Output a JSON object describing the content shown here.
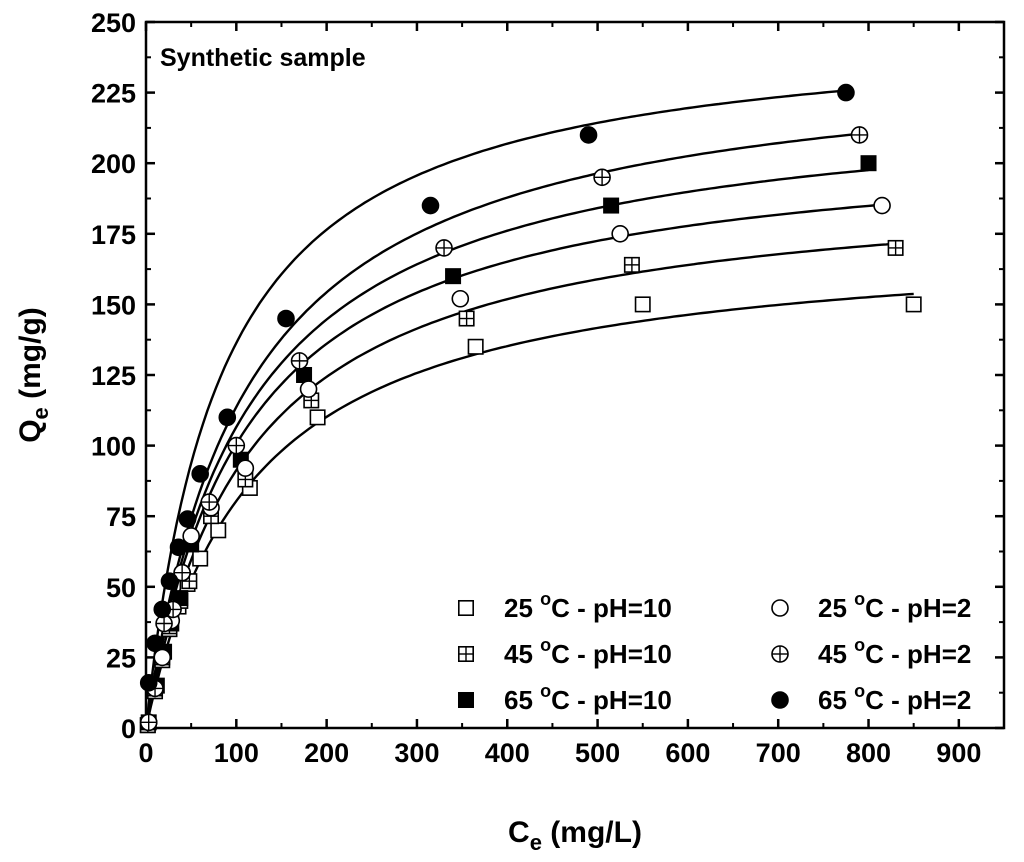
{
  "chart_data": {
    "type": "scatter",
    "annotation": "Synthetic sample",
    "xlabel": {
      "main": "C",
      "sub": "e",
      "unit": " (mg/L)"
    },
    "ylabel": {
      "main": "Q",
      "sub": "e",
      "unit": " (mg/g)"
    },
    "xlim": [
      0,
      950
    ],
    "ylim": [
      0,
      250
    ],
    "xticks": [
      0,
      100,
      200,
      300,
      400,
      500,
      600,
      700,
      800,
      900
    ],
    "yticks": [
      0,
      25,
      50,
      75,
      100,
      125,
      150,
      175,
      200,
      225,
      250
    ],
    "grid": false,
    "legend_position": "bottom-right",
    "series": [
      {
        "name": "25 °C - pH=10",
        "temp": "25",
        "ph": "pH=10",
        "marker": "square-open",
        "fit": {
          "qmax": 175,
          "k": 0.0085,
          "xmax": 850
        },
        "points": [
          [
            2,
            1
          ],
          [
            10,
            13
          ],
          [
            18,
            24
          ],
          [
            26,
            35
          ],
          [
            36,
            43
          ],
          [
            46,
            51
          ],
          [
            60,
            60
          ],
          [
            80,
            70
          ],
          [
            115,
            85
          ],
          [
            190,
            110
          ],
          [
            365,
            135
          ],
          [
            550,
            150
          ],
          [
            850,
            150
          ]
        ]
      },
      {
        "name": "45 °C - pH=10",
        "temp": "45",
        "ph": "pH=10",
        "marker": "square-cross",
        "fit": {
          "qmax": 195,
          "k": 0.0088,
          "xmax": 830
        },
        "points": [
          [
            2,
            1
          ],
          [
            10,
            14
          ],
          [
            18,
            25
          ],
          [
            26,
            36
          ],
          [
            38,
            45
          ],
          [
            48,
            52
          ],
          [
            72,
            75
          ],
          [
            110,
            88
          ],
          [
            183,
            116
          ],
          [
            355,
            145
          ],
          [
            538,
            164
          ],
          [
            830,
            170
          ]
        ]
      },
      {
        "name": "65 °C - pH=10",
        "temp": "65",
        "ph": "pH=10",
        "marker": "square-filled",
        "fit": {
          "qmax": 225,
          "k": 0.009,
          "xmax": 800
        },
        "points": [
          [
            3,
            2
          ],
          [
            12,
            15
          ],
          [
            20,
            27
          ],
          [
            28,
            37
          ],
          [
            38,
            46
          ],
          [
            50,
            65
          ],
          [
            105,
            95
          ],
          [
            175,
            125
          ],
          [
            340,
            160
          ],
          [
            515,
            185
          ],
          [
            800,
            200
          ]
        ]
      },
      {
        "name": "25 °C - pH=2",
        "temp": "25",
        "ph": "pH=2",
        "marker": "circle-open",
        "fit": {
          "qmax": 210,
          "k": 0.0092,
          "xmax": 815
        },
        "points": [
          [
            3,
            2
          ],
          [
            10,
            14
          ],
          [
            18,
            25
          ],
          [
            28,
            38
          ],
          [
            40,
            55
          ],
          [
            50,
            68
          ],
          [
            72,
            78
          ],
          [
            110,
            92
          ],
          [
            180,
            120
          ],
          [
            348,
            152
          ],
          [
            525,
            175
          ],
          [
            815,
            185
          ]
        ]
      },
      {
        "name": "45 °C - pH=2",
        "temp": "45",
        "ph": "pH=2",
        "marker": "circle-cross",
        "fit": {
          "qmax": 240,
          "k": 0.009,
          "xmax": 790
        },
        "points": [
          [
            3,
            2
          ],
          [
            10,
            14
          ],
          [
            20,
            37
          ],
          [
            30,
            42
          ],
          [
            40,
            55
          ],
          [
            70,
            80
          ],
          [
            100,
            100
          ],
          [
            170,
            130
          ],
          [
            330,
            170
          ],
          [
            505,
            195
          ],
          [
            790,
            210
          ]
        ]
      },
      {
        "name": "65 °C - pH=2",
        "temp": "65",
        "ph": "pH=2",
        "marker": "circle-filled",
        "fit": {
          "qmax": 250,
          "k": 0.012,
          "xmax": 775
        },
        "points": [
          [
            3,
            16
          ],
          [
            10,
            30
          ],
          [
            18,
            42
          ],
          [
            26,
            52
          ],
          [
            36,
            64
          ],
          [
            46,
            74
          ],
          [
            60,
            90
          ],
          [
            90,
            110
          ],
          [
            155,
            145
          ],
          [
            315,
            185
          ],
          [
            490,
            210
          ],
          [
            775,
            225
          ]
        ]
      }
    ]
  }
}
